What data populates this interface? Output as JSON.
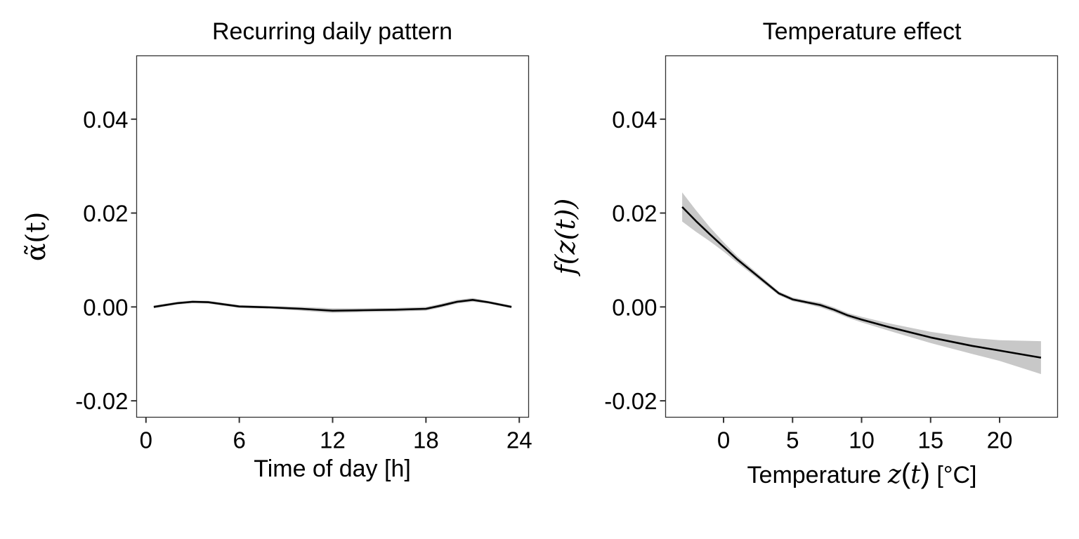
{
  "chart_data": [
    {
      "type": "line",
      "title": "Recurring daily pattern",
      "xlabel": "Time of day [h]",
      "ylabel": "α̃(t)",
      "xticks": [
        0,
        6,
        12,
        18,
        24
      ],
      "yticks": [
        -0.02,
        0.0,
        0.02,
        0.04
      ],
      "ytick_labels": [
        "-0.02",
        "0.00",
        "0.02",
        "0.04"
      ],
      "xlim": [
        -0.6,
        24.6
      ],
      "ylim": [
        -0.0235,
        0.0535
      ],
      "grid": false,
      "series": [
        {
          "x": [
            0.5,
            2,
            3,
            4,
            6,
            8,
            10,
            12,
            14,
            16,
            18,
            19,
            20,
            21,
            22,
            23.5
          ],
          "y": [
            0.0,
            0.0008,
            0.0011,
            0.001,
            0.0001,
            -0.0001,
            -0.0004,
            -0.0008,
            -0.0007,
            -0.0006,
            -0.0004,
            0.0003,
            0.0011,
            0.0015,
            0.001,
            0.0
          ],
          "lower": [
            -0.0003,
            0.0005,
            0.0008,
            0.0007,
            -0.0002,
            -0.0004,
            -0.0008,
            -0.0013,
            -0.0011,
            -0.001,
            -0.0008,
            -0.0001,
            0.0007,
            0.0011,
            0.0007,
            -0.0003
          ],
          "upper": [
            0.0003,
            0.0011,
            0.0014,
            0.0013,
            0.0004,
            0.0002,
            0.0,
            -0.0003,
            -0.0003,
            -0.0002,
            0.0,
            0.0007,
            0.0015,
            0.0019,
            0.0013,
            0.0003
          ]
        }
      ]
    },
    {
      "type": "line",
      "title": "Temperature effect",
      "xlabel_text": "Temperature ",
      "xlabel_var": "z",
      "xlabel_paren_open": "(",
      "xlabel_arg": "t",
      "xlabel_paren_close": ")",
      "xlabel_unit": " [°C]",
      "ylabel": "f(z(t))",
      "xticks": [
        0,
        5,
        10,
        15,
        20
      ],
      "yticks": [
        -0.02,
        0.0,
        0.02,
        0.04
      ],
      "ytick_labels": [
        "-0.02",
        "0.00",
        "0.02",
        "0.04"
      ],
      "xlim": [
        -4.2,
        24.2
      ],
      "ylim": [
        -0.0235,
        0.0535
      ],
      "grid": false,
      "series": [
        {
          "x": [
            -3,
            -2,
            -1,
            0,
            1,
            2,
            3,
            4,
            5,
            6,
            7,
            8,
            9,
            10,
            12,
            15,
            18,
            20,
            23
          ],
          "y": [
            0.0213,
            0.0183,
            0.0155,
            0.0128,
            0.0101,
            0.0077,
            0.0053,
            0.0029,
            0.0016,
            0.001,
            0.0004,
            -0.0006,
            -0.0018,
            -0.0027,
            -0.0043,
            -0.0065,
            -0.0083,
            -0.0093,
            -0.0108
          ],
          "lower": [
            0.0182,
            0.016,
            0.014,
            0.0118,
            0.0094,
            0.0071,
            0.0048,
            0.0025,
            0.0012,
            0.0006,
            -0.0001,
            -0.0011,
            -0.0023,
            -0.0033,
            -0.0051,
            -0.0077,
            -0.01,
            -0.0115,
            -0.0143
          ],
          "upper": [
            0.0244,
            0.0206,
            0.017,
            0.0138,
            0.0108,
            0.0083,
            0.0058,
            0.0033,
            0.002,
            0.0014,
            0.0009,
            -0.0001,
            -0.0013,
            -0.0021,
            -0.0035,
            -0.0053,
            -0.0066,
            -0.0071,
            -0.0073
          ]
        }
      ]
    }
  ]
}
